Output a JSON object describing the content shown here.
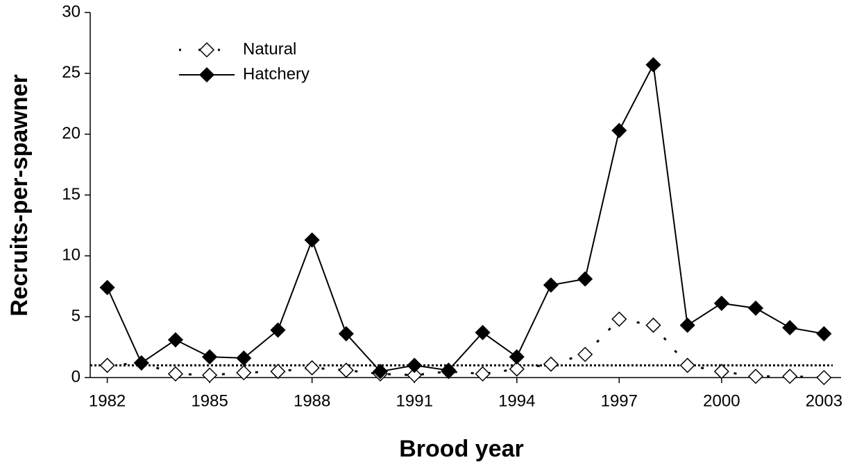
{
  "chart_data": {
    "type": "line",
    "xlabel": "Brood year",
    "ylabel": "Recruits-per-spawner",
    "x": [
      1982,
      1983,
      1984,
      1985,
      1986,
      1987,
      1988,
      1989,
      1990,
      1991,
      1992,
      1993,
      1994,
      1995,
      1996,
      1997,
      1998,
      1999,
      2000,
      2001,
      2002,
      2003
    ],
    "series": [
      {
        "name": "Natural",
        "color": "#000000",
        "line_style": "dotted",
        "marker_fill": "#ffffff",
        "values": [
          1.0,
          1.2,
          0.3,
          0.2,
          0.4,
          0.5,
          0.8,
          0.6,
          0.3,
          0.2,
          0.5,
          0.3,
          0.7,
          1.1,
          1.9,
          4.8,
          4.3,
          1.0,
          0.5,
          0.1,
          0.1,
          0.0
        ]
      },
      {
        "name": "Hatchery",
        "color": "#000000",
        "line_style": "solid",
        "marker_fill": "#000000",
        "values": [
          7.4,
          1.2,
          3.1,
          1.7,
          1.6,
          3.9,
          11.3,
          3.6,
          0.5,
          1.0,
          0.6,
          3.7,
          1.7,
          7.6,
          8.1,
          20.3,
          25.7,
          4.3,
          6.1,
          5.7,
          4.1,
          3.6
        ]
      }
    ],
    "reference_line": 1,
    "xlim": [
      1981.5,
      2003.5
    ],
    "xticks": [
      1982,
      1985,
      1988,
      1991,
      1994,
      1997,
      2000,
      2003
    ],
    "ylim": [
      0,
      30
    ],
    "yticks": [
      0,
      5,
      10,
      15,
      20,
      25,
      30
    ],
    "legend": "top-left"
  }
}
